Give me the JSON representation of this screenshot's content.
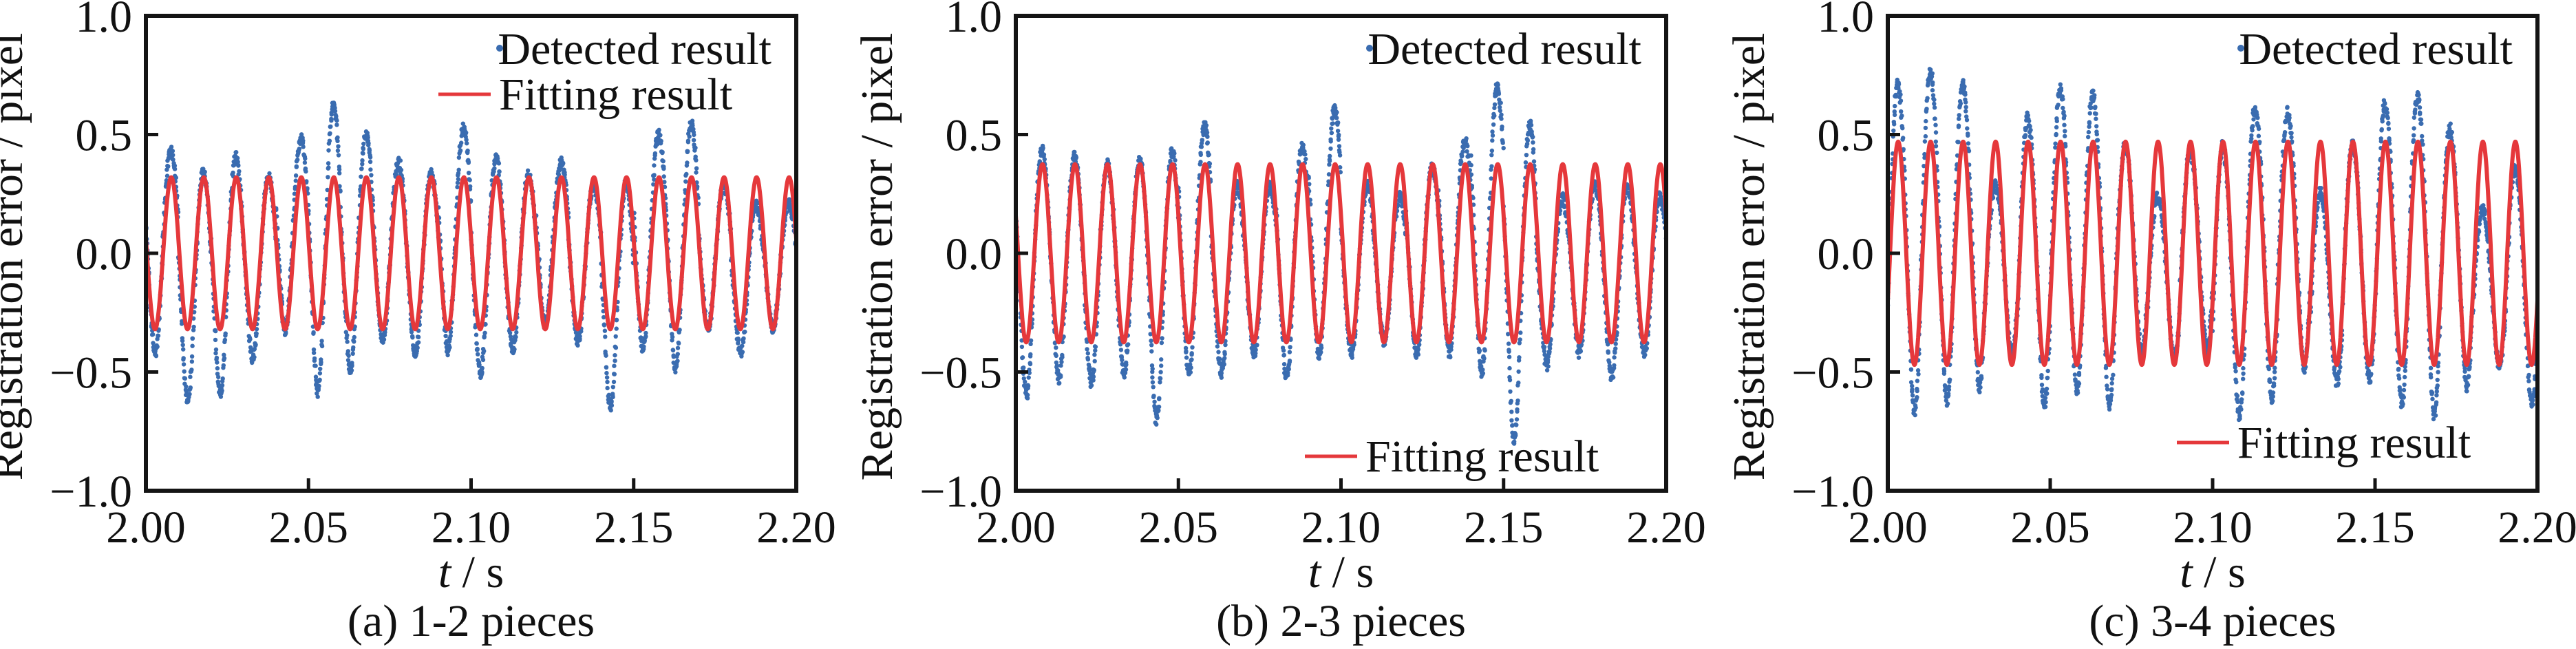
{
  "figure": {
    "colors": {
      "detected": "#3a6cb0",
      "fitting": "#e5383b",
      "axis": "#141414",
      "text": "#111111"
    }
  },
  "chart_data": [
    {
      "type": "scatter",
      "panel_id": "a",
      "caption": "(a) 1-2 pieces",
      "xlabel_var": "t",
      "xlabel_unit": " / s",
      "ylabel": "Registration error / pixel",
      "xlim": [
        2.0,
        2.2
      ],
      "ylim": [
        -1.0,
        1.0
      ],
      "xticks": [
        "2.00",
        "2.05",
        "2.10",
        "2.15",
        "2.20"
      ],
      "xtick_values": [
        2.0,
        2.05,
        2.1,
        2.15,
        2.2
      ],
      "yticks": [
        "1.0",
        "0.5",
        "0.0",
        "−0.5",
        "−1.0"
      ],
      "ytick_values": [
        1.0,
        0.5,
        0.0,
        -0.5,
        -1.0
      ],
      "grid": false,
      "legend": {
        "detected_label": "Detected result",
        "fitting_label": "Fitting result",
        "placement": "top-right",
        "fitting_placement": "top-right"
      },
      "series": [
        {
          "name": "Detected result",
          "kind": "scatter",
          "cycle_frequency_hz": 100,
          "cycle_peaks": [
            0.46,
            0.36,
            0.43,
            0.34,
            0.5,
            0.65,
            0.53,
            0.4,
            0.35,
            0.55,
            0.42,
            0.35,
            0.4,
            0.3,
            0.32,
            0.52,
            0.57,
            0.3,
            0.22,
            0.22
          ],
          "cycle_troughs": [
            -0.4,
            -0.59,
            -0.56,
            -0.42,
            -0.3,
            -0.55,
            -0.46,
            -0.35,
            -0.4,
            -0.38,
            -0.48,
            -0.38,
            -0.28,
            -0.35,
            -0.62,
            -0.38,
            -0.45,
            -0.3,
            -0.4,
            -0.3
          ]
        },
        {
          "name": "Fitting result",
          "kind": "line",
          "model": "A*sin(2*pi*f*(t-2)+phi)",
          "amplitude": 0.32,
          "frequency_hz": 100,
          "phase_rad": -3.33
        }
      ]
    },
    {
      "type": "scatter",
      "panel_id": "b",
      "caption": "(b) 2-3 pieces",
      "xlabel_var": "t",
      "xlabel_unit": " / s",
      "ylabel": "Registration error / pixel",
      "xlim": [
        2.0,
        2.2
      ],
      "ylim": [
        -1.0,
        1.0
      ],
      "xticks": [
        "2.00",
        "2.05",
        "2.10",
        "2.15",
        "2.20"
      ],
      "xtick_values": [
        2.0,
        2.05,
        2.1,
        2.15,
        2.2
      ],
      "yticks": [
        "1.0",
        "0.5",
        "0.0",
        "−0.5",
        "−1.0"
      ],
      "ytick_values": [
        1.0,
        0.5,
        0.0,
        -0.5,
        -1.0
      ],
      "grid": false,
      "legend": {
        "detected_label": "Detected result",
        "fitting_label": "Fitting result",
        "placement": "top-right",
        "fitting_placement": "bottom-right"
      },
      "series": [
        {
          "name": "Detected result",
          "kind": "scatter",
          "cycle_frequency_hz": 100,
          "cycle_peaks": [
            0.46,
            0.43,
            0.4,
            0.41,
            0.46,
            0.56,
            0.3,
            0.3,
            0.48,
            0.63,
            0.3,
            0.25,
            0.38,
            0.5,
            0.73,
            0.57,
            0.25,
            0.3,
            0.3,
            0.25
          ],
          "cycle_troughs": [
            -0.57,
            -0.5,
            -0.52,
            -0.48,
            -0.67,
            -0.48,
            -0.48,
            -0.4,
            -0.5,
            -0.4,
            -0.4,
            -0.35,
            -0.4,
            -0.4,
            -0.47,
            -0.75,
            -0.45,
            -0.4,
            -0.5,
            -0.4
          ]
        },
        {
          "name": "Fitting result",
          "kind": "line",
          "model": "A*sin(2*pi*f*(t-2)+phi)",
          "amplitude": 0.375,
          "frequency_hz": 100,
          "phase_rad": -3.58
        }
      ]
    },
    {
      "type": "scatter",
      "panel_id": "c",
      "caption": "(c) 3-4 pieces",
      "xlabel_var": "t",
      "xlabel_unit": " / s",
      "ylabel": "Registration error / pixel",
      "xlim": [
        2.0,
        2.2
      ],
      "ylim": [
        -1.0,
        1.0
      ],
      "xticks": [
        "2.00",
        "2.05",
        "2.10",
        "2.15",
        "2.20"
      ],
      "xtick_values": [
        2.0,
        2.05,
        2.1,
        2.15,
        2.2
      ],
      "yticks": [
        "1.0",
        "0.5",
        "0.0",
        "−0.5",
        "−1.0"
      ],
      "ytick_values": [
        1.0,
        0.5,
        0.0,
        -0.5,
        -1.0
      ],
      "grid": false,
      "legend": {
        "detected_label": "Detected result",
        "fitting_label": "Fitting result",
        "placement": "top-right",
        "fitting_placement": "bottom-right"
      },
      "series": [
        {
          "name": "Detected result",
          "kind": "scatter",
          "cycle_frequency_hz": 100,
          "cycle_peaks": [
            0.75,
            0.8,
            0.74,
            0.3,
            0.6,
            0.72,
            0.7,
            0.47,
            0.25,
            0.45,
            0.48,
            0.64,
            0.62,
            0.28,
            0.48,
            0.66,
            0.7,
            0.55,
            0.2,
            0.38
          ],
          "cycle_troughs": [
            -0.64,
            -0.58,
            -0.53,
            -0.4,
            -0.6,
            -0.55,
            -0.61,
            -0.4,
            -0.42,
            -0.38,
            -0.65,
            -0.58,
            -0.45,
            -0.52,
            -0.5,
            -0.6,
            -0.65,
            -0.53,
            -0.45,
            -0.6
          ]
        },
        {
          "name": "Fitting result",
          "kind": "line",
          "model": "A*sin(2*pi*f*(t-2)+phi)",
          "amplitude": 0.47,
          "frequency_hz": 100,
          "phase_rad": -0.44
        }
      ]
    }
  ]
}
